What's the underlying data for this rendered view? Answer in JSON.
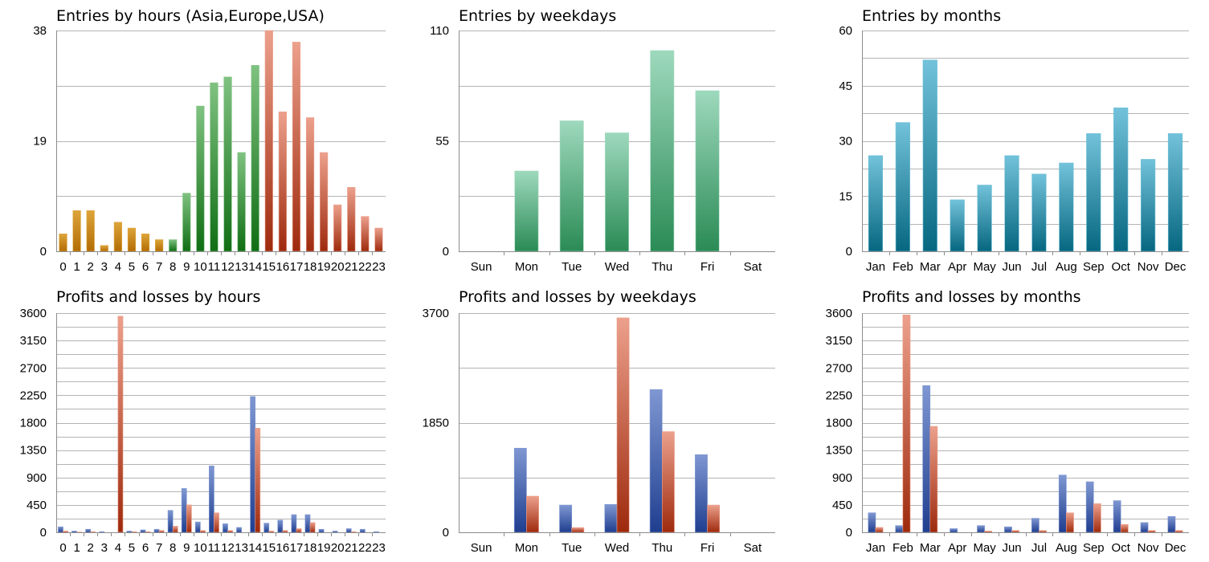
{
  "palettes": {
    "orange": [
      "#dda53a",
      "#b36c04"
    ],
    "green": [
      "#7fc281",
      "#106e14"
    ],
    "red": [
      "#eca08c",
      "#9e2a0d"
    ],
    "mint": [
      "#9ed9bd",
      "#2a8b55"
    ],
    "teal": [
      "#72c2da",
      "#066780"
    ],
    "blue": [
      "#7f97d2",
      "#1f3e8f"
    ],
    "loss": [
      "#eca08c",
      "#9e2a0d"
    ]
  },
  "chart_data": [
    {
      "type": "bar",
      "title": "Entries by hours (Asia,Europe,USA)",
      "categories": [
        "0",
        "1",
        "2",
        "3",
        "4",
        "5",
        "6",
        "7",
        "8",
        "9",
        "10",
        "11",
        "12",
        "13",
        "14",
        "15",
        "16",
        "17",
        "18",
        "19",
        "20",
        "21",
        "22",
        "23"
      ],
      "ylim": [
        0,
        38
      ],
      "yticks": [
        0,
        19,
        38
      ],
      "grid": true,
      "series": [
        {
          "values": [
            3,
            7,
            7,
            1,
            5,
            4,
            3,
            2,
            2,
            10,
            25,
            29,
            30,
            17,
            32,
            38,
            24,
            36,
            23,
            17,
            8,
            11,
            6,
            4
          ],
          "colors": [
            "orange",
            "orange",
            "orange",
            "orange",
            "orange",
            "orange",
            "orange",
            "orange",
            "green",
            "green",
            "green",
            "green",
            "green",
            "green",
            "green",
            "red",
            "red",
            "red",
            "red",
            "red",
            "red",
            "red",
            "red",
            "red"
          ]
        }
      ]
    },
    {
      "type": "bar",
      "title": "Entries by weekdays",
      "categories": [
        "Sun",
        "Mon",
        "Tue",
        "Wed",
        "Thu",
        "Fri",
        "Sat"
      ],
      "ylim": [
        0,
        110
      ],
      "yticks": [
        0,
        55,
        110
      ],
      "grid": true,
      "series": [
        {
          "values": [
            0,
            40,
            65,
            59,
            100,
            80,
            0
          ],
          "color": "mint"
        }
      ]
    },
    {
      "type": "bar",
      "title": "Entries by months",
      "categories": [
        "Jan",
        "Feb",
        "Mar",
        "Apr",
        "May",
        "Jun",
        "Jul",
        "Aug",
        "Sep",
        "Oct",
        "Nov",
        "Dec"
      ],
      "ylim": [
        0,
        60
      ],
      "yticks": [
        0,
        15,
        30,
        45,
        60
      ],
      "grid": true,
      "series": [
        {
          "values": [
            26,
            35,
            52,
            14,
            18,
            26,
            21,
            24,
            32,
            39,
            25,
            32
          ],
          "color": "teal"
        }
      ]
    },
    {
      "type": "bar",
      "title": "Profits and losses by hours",
      "categories": [
        "0",
        "1",
        "2",
        "3",
        "4",
        "5",
        "6",
        "7",
        "8",
        "9",
        "10",
        "11",
        "12",
        "13",
        "14",
        "15",
        "16",
        "17",
        "18",
        "19",
        "20",
        "21",
        "22",
        "23"
      ],
      "ylim": [
        0,
        3600
      ],
      "yticks": [
        0,
        450,
        900,
        1350,
        1800,
        2250,
        2700,
        3150,
        3600
      ],
      "grid": true,
      "series": [
        {
          "values": [
            90,
            20,
            50,
            10,
            0,
            20,
            40,
            50,
            360,
            720,
            170,
            1090,
            140,
            80,
            2230,
            150,
            200,
            290,
            290,
            50,
            20,
            60,
            50,
            10
          ],
          "color": "blue"
        },
        {
          "values": [
            20,
            5,
            10,
            0,
            3550,
            10,
            10,
            30,
            100,
            450,
            30,
            320,
            30,
            0,
            1710,
            20,
            30,
            60,
            160,
            0,
            0,
            10,
            0,
            0
          ],
          "color": "loss"
        }
      ]
    },
    {
      "type": "bar",
      "title": "Profits and losses by weekdays",
      "categories": [
        "Sun",
        "Mon",
        "Tue",
        "Wed",
        "Thu",
        "Fri",
        "Sat"
      ],
      "ylim": [
        0,
        3700
      ],
      "yticks": [
        0,
        1850,
        3700
      ],
      "grid": true,
      "series": [
        {
          "values": [
            0,
            1420,
            460,
            470,
            2410,
            1310,
            0
          ],
          "color": "blue"
        },
        {
          "values": [
            0,
            610,
            80,
            3620,
            1700,
            460,
            0
          ],
          "color": "loss"
        }
      ]
    },
    {
      "type": "bar",
      "title": "Profits and losses by months",
      "categories": [
        "Jan",
        "Feb",
        "Mar",
        "Apr",
        "May",
        "Jun",
        "Jul",
        "Aug",
        "Sep",
        "Oct",
        "Nov",
        "Dec"
      ],
      "ylim": [
        0,
        3600
      ],
      "yticks": [
        0,
        450,
        900,
        1350,
        1800,
        2250,
        2700,
        3150,
        3600
      ],
      "grid": true,
      "series": [
        {
          "values": [
            320,
            110,
            2410,
            60,
            110,
            90,
            230,
            940,
            830,
            520,
            160,
            260
          ],
          "color": "blue"
        },
        {
          "values": [
            80,
            3570,
            1740,
            0,
            20,
            30,
            30,
            320,
            470,
            130,
            30,
            30
          ],
          "color": "loss"
        }
      ]
    }
  ]
}
